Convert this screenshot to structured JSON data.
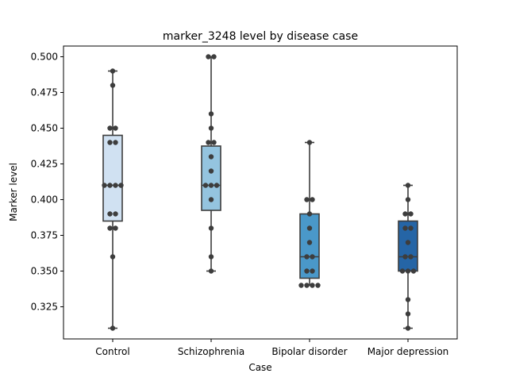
{
  "chart_data": {
    "type": "box",
    "title": "marker_3248 level by disease case",
    "xlabel": "Case",
    "ylabel": "Marker level",
    "ylim": [
      0.3025,
      0.5075
    ],
    "yticks": [
      0.325,
      0.35,
      0.375,
      0.4,
      0.425,
      0.45,
      0.475,
      0.5
    ],
    "ytick_labels": [
      "0.325",
      "0.350",
      "0.375",
      "0.400",
      "0.425",
      "0.450",
      "0.475",
      "0.500"
    ],
    "grid": false,
    "categories": [
      "Control",
      "Schizophrenia",
      "Bipolar disorder",
      "Major depression"
    ],
    "colors": [
      "#d0e1f2",
      "#94c4df",
      "#4a98c9",
      "#2565a6"
    ],
    "boxes": [
      {
        "whisker_low": 0.31,
        "q1": 0.385,
        "median": 0.41,
        "q3": 0.445,
        "whisker_high": 0.49
      },
      {
        "whisker_low": 0.35,
        "q1": 0.3925,
        "median": 0.41,
        "q3": 0.4375,
        "whisker_high": 0.5
      },
      {
        "whisker_low": 0.34,
        "q1": 0.345,
        "median": 0.36,
        "q3": 0.39,
        "whisker_high": 0.44
      },
      {
        "whisker_low": 0.31,
        "q1": 0.35,
        "median": 0.36,
        "q3": 0.385,
        "whisker_high": 0.41
      }
    ],
    "points": [
      [
        0.49,
        0.48,
        0.45,
        0.45,
        0.44,
        0.44,
        0.41,
        0.41,
        0.41,
        0.41,
        0.39,
        0.39,
        0.38,
        0.38,
        0.36,
        0.31
      ],
      [
        0.5,
        0.5,
        0.46,
        0.45,
        0.44,
        0.44,
        0.43,
        0.42,
        0.41,
        0.41,
        0.41,
        0.4,
        0.38,
        0.36,
        0.35
      ],
      [
        0.44,
        0.4,
        0.4,
        0.39,
        0.38,
        0.37,
        0.36,
        0.36,
        0.35,
        0.35,
        0.34,
        0.34,
        0.34,
        0.34
      ],
      [
        0.41,
        0.4,
        0.39,
        0.39,
        0.38,
        0.38,
        0.37,
        0.36,
        0.36,
        0.35,
        0.35,
        0.35,
        0.33,
        0.32,
        0.31
      ]
    ]
  }
}
